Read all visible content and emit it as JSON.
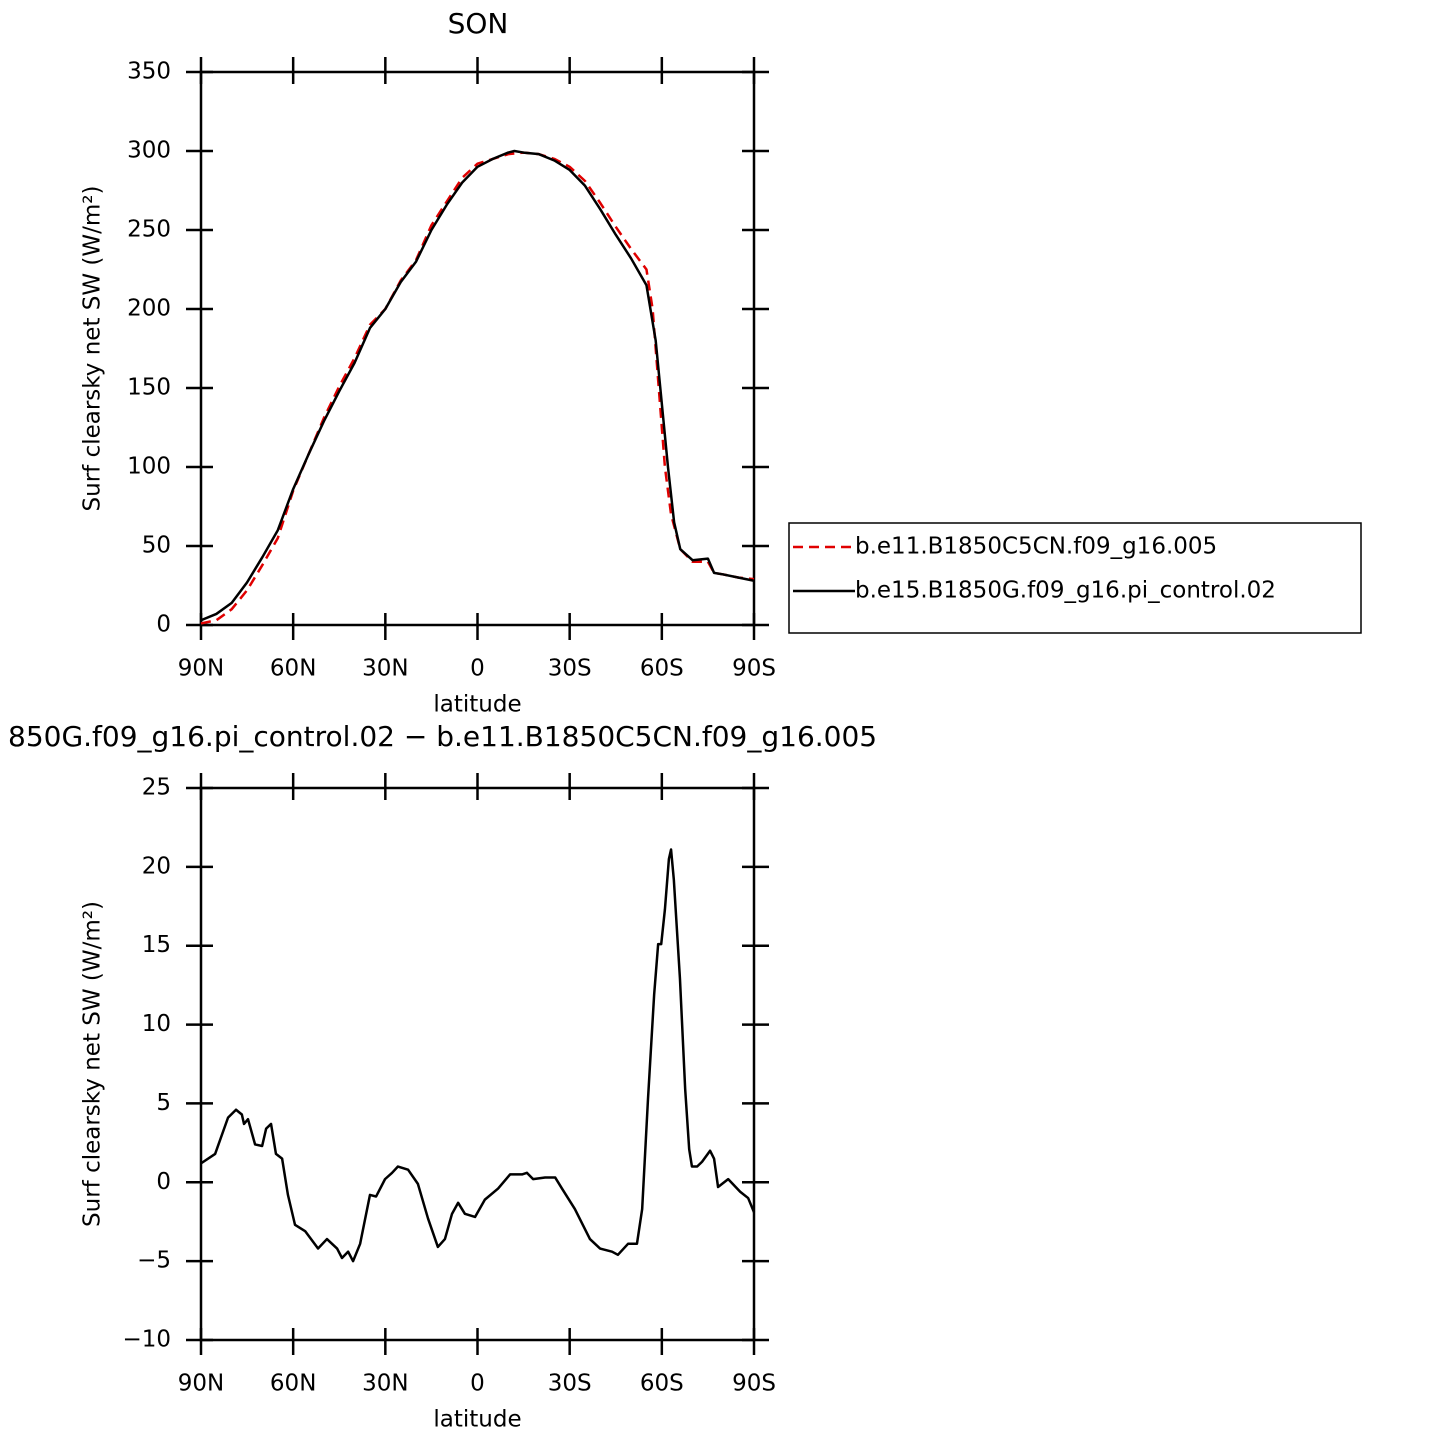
{
  "chart_data": [
    {
      "type": "line",
      "title": "SON",
      "x_label": "latitude",
      "y_label": "Surf clearsky net SW (W/m²)",
      "xlim": [
        90,
        -90
      ],
      "xticks": [
        {
          "value": 90,
          "label": "90N"
        },
        {
          "value": 60,
          "label": "60N"
        },
        {
          "value": 30,
          "label": "30N"
        },
        0,
        {
          "value": -30,
          "label": "30S"
        },
        {
          "value": -60,
          "label": "60S"
        },
        {
          "value": -90,
          "label": "90S"
        }
      ],
      "ylim": [
        0,
        350
      ],
      "yticks": [
        0,
        50,
        100,
        150,
        200,
        250,
        300,
        350
      ],
      "legend": "outside-right",
      "series": [
        {
          "name": "b.e11.B1850C5CN.f09_g16.005",
          "color": "#e00000",
          "dash": true,
          "x": [
            90,
            85,
            80,
            75,
            70,
            65,
            60,
            55,
            50,
            45,
            40,
            35,
            30,
            25,
            20,
            15,
            10,
            5,
            0,
            -5,
            -10,
            -15,
            -20,
            -25,
            -30,
            -35,
            -40,
            -45,
            -50,
            -55,
            -57,
            -59,
            -61,
            -63,
            -66,
            -70,
            -75,
            -77,
            -80,
            -85,
            -90
          ],
          "values": [
            1,
            3,
            10,
            22,
            38,
            55,
            85,
            108,
            131,
            151,
            169,
            190,
            200,
            218,
            231,
            253,
            268,
            283,
            292,
            295,
            298,
            299,
            298,
            295,
            290,
            281,
            267,
            252,
            238,
            225,
            200,
            150,
            100,
            70,
            48,
            40,
            40,
            33,
            32,
            30,
            29
          ]
        },
        {
          "name": "b.e15.B1850G.f09_g16.pi_control.02",
          "color": "#000000",
          "dash": false,
          "x": [
            90,
            85,
            80,
            75,
            70,
            65,
            60,
            55,
            50,
            45,
            40,
            35,
            30,
            25,
            20,
            15,
            10,
            5,
            0,
            -5,
            -10,
            -12,
            -15,
            -20,
            -25,
            -30,
            -35,
            -40,
            -45,
            -50,
            -55,
            -58,
            -60,
            -62,
            -64,
            -66,
            -70,
            -75,
            -77,
            -80,
            -85,
            -90
          ],
          "values": [
            3,
            7,
            14,
            27,
            43,
            60,
            86,
            108,
            129,
            148,
            166,
            188,
            200,
            217,
            230,
            250,
            266,
            280,
            290,
            295,
            299,
            300,
            299,
            298,
            294,
            288,
            278,
            263,
            247,
            232,
            215,
            180,
            140,
            100,
            65,
            48,
            41,
            42,
            33,
            32,
            30,
            28
          ]
        }
      ]
    },
    {
      "type": "line",
      "title": "850G.f09_g16.pi_control.02 − b.e11.B1850C5CN.f09_g16.005",
      "x_label": "latitude",
      "y_label": "Surf clearsky net SW (W/m²)",
      "xlim": [
        90,
        -90
      ],
      "xticks": [
        {
          "value": 90,
          "label": "90N"
        },
        {
          "value": 60,
          "label": "60N"
        },
        {
          "value": 30,
          "label": "30N"
        },
        0,
        {
          "value": -30,
          "label": "30S"
        },
        {
          "value": -60,
          "label": "60S"
        },
        {
          "value": -90,
          "label": "90S"
        }
      ],
      "ylim": [
        -10,
        25
      ],
      "yticks": [
        {
          "value": -10,
          "label": "−10"
        },
        {
          "value": -5,
          "label": "−5"
        },
        0,
        5,
        10,
        15,
        20,
        25
      ],
      "color": "#000000",
      "x": [
        90,
        85.4,
        81.2,
        78.6,
        76.7,
        76,
        74.7,
        72.4,
        70.1,
        68.8,
        67.2,
        65.6,
        63.6,
        61.7,
        59.4,
        56.1,
        51.9,
        49,
        45.7,
        44.1,
        42.1,
        40.5,
        38.2,
        35,
        33,
        30.1,
        27.8,
        25.9,
        22.6,
        19.4,
        16.1,
        12.9,
        10.6,
        8.3,
        6.3,
        4.1,
        0.8,
        -2.4,
        -6.7,
        -10.6,
        -14.5,
        -16.1,
        -18.1,
        -22,
        -25.3,
        -27.5,
        -31.7,
        -36.6,
        -39.9,
        -43.8,
        -45.7,
        -49,
        -51.9,
        -53.6,
        -55.5,
        -57.5,
        -58.8,
        -59.8,
        -61,
        -62.3,
        -63,
        -63.9,
        -65.9,
        -67.6,
        -68.9,
        -69.8,
        -71.5,
        -73.1,
        -75.7,
        -77,
        -78.3,
        -81.6,
        -85.5,
        -88.1,
        -90
      ],
      "values": [
        1.2,
        1.8,
        4.1,
        4.6,
        4.3,
        3.7,
        4.0,
        2.4,
        2.3,
        3.4,
        3.7,
        1.8,
        1.5,
        -0.8,
        -2.7,
        -3.1,
        -4.2,
        -3.6,
        -4.2,
        -4.8,
        -4.4,
        -5.0,
        -3.9,
        -0.8,
        -0.9,
        0.2,
        0.6,
        1.0,
        0.8,
        -0.1,
        -2.3,
        -4.1,
        -3.6,
        -2.0,
        -1.3,
        -2.0,
        -2.2,
        -1.1,
        -0.4,
        0.5,
        0.5,
        0.6,
        0.2,
        0.3,
        0.3,
        -0.4,
        -1.7,
        -3.6,
        -4.2,
        -4.4,
        -4.6,
        -3.9,
        -3.9,
        -1.7,
        5.3,
        11.9,
        15.1,
        15.1,
        17.3,
        20.5,
        21.1,
        19.2,
        12.9,
        5.9,
        2.1,
        1.0,
        1.0,
        1.3,
        2.0,
        1.5,
        -0.3,
        0.2,
        -0.6,
        -1.0,
        -1.9
      ]
    }
  ]
}
